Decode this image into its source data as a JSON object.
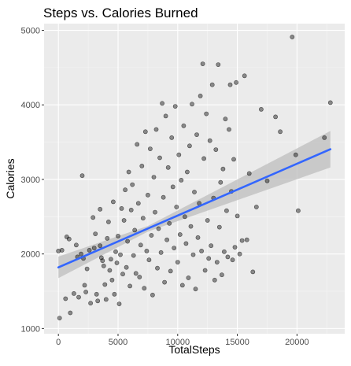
{
  "chart_data": {
    "type": "scatter",
    "title": "Steps vs. Calories Burned",
    "xlabel": "TotalSteps",
    "ylabel": "Calories",
    "xlim": [
      -1200,
      24000
    ],
    "ylim": [
      930,
      5090
    ],
    "x_ticks": [
      0,
      5000,
      10000,
      15000,
      20000
    ],
    "x_tick_labels": [
      "0",
      "5000",
      "10000",
      "15000",
      "20000"
    ],
    "y_ticks": [
      1000,
      2000,
      3000,
      4000,
      5000
    ],
    "y_tick_labels": [
      "1000",
      "2000",
      "3000",
      "4000",
      "5000"
    ],
    "grid": true,
    "colors": {
      "panel": "#ebebeb",
      "grid_major": "#ffffff",
      "grid_minor": "#f5f5f5",
      "points": "#000000",
      "fit_line": "#3366ff",
      "confidence_band": "#bdbdbd"
    },
    "trend": {
      "method": "linear",
      "x": [
        0,
        22800
      ],
      "y": [
        1820,
        3405
      ],
      "ci_upper": [
        1965,
        3650
      ],
      "ci_lower": [
        1675,
        3160
      ],
      "ci_mid_x": 7500,
      "ci_mid_upper": 2375,
      "ci_mid_lower": 2300
    },
    "points": [
      [
        0,
        2040
      ],
      [
        100,
        1140
      ],
      [
        300,
        2050
      ],
      [
        600,
        1400
      ],
      [
        700,
        2230
      ],
      [
        900,
        2200
      ],
      [
        1000,
        1210
      ],
      [
        1300,
        1470
      ],
      [
        1500,
        2120
      ],
      [
        1600,
        1960
      ],
      [
        1700,
        1420
      ],
      [
        1900,
        2000
      ],
      [
        2000,
        3050
      ],
      [
        2100,
        1940
      ],
      [
        2200,
        1580
      ],
      [
        2300,
        1490
      ],
      [
        2400,
        1800
      ],
      [
        2600,
        2050
      ],
      [
        2700,
        1340
      ],
      [
        2900,
        2490
      ],
      [
        3000,
        2080
      ],
      [
        3100,
        2270
      ],
      [
        3200,
        1460
      ],
      [
        3300,
        1370
      ],
      [
        3500,
        2600
      ],
      [
        3500,
        2110
      ],
      [
        3600,
        1950
      ],
      [
        3700,
        1910
      ],
      [
        3800,
        1840
      ],
      [
        3900,
        1590
      ],
      [
        4000,
        1390
      ],
      [
        4100,
        2210
      ],
      [
        4200,
        2430
      ],
      [
        4300,
        1780
      ],
      [
        4400,
        1930
      ],
      [
        4500,
        1650
      ],
      [
        4600,
        2700
      ],
      [
        4700,
        1460
      ],
      [
        4800,
        2030
      ],
      [
        4900,
        1880
      ],
      [
        5000,
        2240
      ],
      [
        5100,
        1330
      ],
      [
        5200,
        1990
      ],
      [
        5300,
        2610
      ],
      [
        5400,
        1730
      ],
      [
        5500,
        2450
      ],
      [
        5600,
        2860
      ],
      [
        5700,
        1820
      ],
      [
        5800,
        2170
      ],
      [
        5900,
        3100
      ],
      [
        6000,
        1570
      ],
      [
        6100,
        2590
      ],
      [
        6200,
        2930
      ],
      [
        6300,
        1980
      ],
      [
        6400,
        2320
      ],
      [
        6500,
        1740
      ],
      [
        6600,
        3470
      ],
      [
        6700,
        2680
      ],
      [
        6800,
        1690
      ],
      [
        6900,
        2120
      ],
      [
        7000,
        3180
      ],
      [
        7100,
        2480
      ],
      [
        7200,
        1540
      ],
      [
        7300,
        3640
      ],
      [
        7400,
        2040
      ],
      [
        7500,
        2790
      ],
      [
        7600,
        1920
      ],
      [
        7700,
        3410
      ],
      [
        7800,
        2250
      ],
      [
        7900,
        1450
      ],
      [
        8000,
        3030
      ],
      [
        8100,
        2560
      ],
      [
        8200,
        3670
      ],
      [
        8300,
        1810
      ],
      [
        8400,
        2340
      ],
      [
        8500,
        3290
      ],
      [
        8600,
        2020
      ],
      [
        8700,
        4020
      ],
      [
        8800,
        2760
      ],
      [
        8900,
        1620
      ],
      [
        9000,
        3850
      ],
      [
        9100,
        2190
      ],
      [
        9200,
        3160
      ],
      [
        9300,
        2410
      ],
      [
        9400,
        1770
      ],
      [
        9500,
        3560
      ],
      [
        9600,
        2900
      ],
      [
        9700,
        2080
      ],
      [
        9800,
        3980
      ],
      [
        9900,
        2630
      ],
      [
        10000,
        1890
      ],
      [
        10100,
        3330
      ],
      [
        10200,
        2260
      ],
      [
        10300,
        2990
      ],
      [
        10400,
        1580
      ],
      [
        10500,
        3720
      ],
      [
        10600,
        2500
      ],
      [
        10700,
        2140
      ],
      [
        10800,
        3100
      ],
      [
        10900,
        1680
      ],
      [
        11000,
        3450
      ],
      [
        11100,
        2370
      ],
      [
        11200,
        4010
      ],
      [
        11300,
        1990
      ],
      [
        11400,
        2830
      ],
      [
        11500,
        1530
      ],
      [
        11600,
        3600
      ],
      [
        11700,
        2220
      ],
      [
        11800,
        2680
      ],
      [
        11900,
        4120
      ],
      [
        12000,
        2040
      ],
      [
        12100,
        4550
      ],
      [
        12200,
        3280
      ],
      [
        12300,
        1780
      ],
      [
        12400,
        3880
      ],
      [
        12500,
        2450
      ],
      [
        12600,
        1940
      ],
      [
        12700,
        3520
      ],
      [
        12800,
        2110
      ],
      [
        12900,
        4270
      ],
      [
        13000,
        2750
      ],
      [
        13100,
        1650
      ],
      [
        13200,
        3400
      ],
      [
        13300,
        1890
      ],
      [
        13400,
        4540
      ],
      [
        13500,
        2360
      ],
      [
        13600,
        2960
      ],
      [
        13700,
        1720
      ],
      [
        13800,
        3140
      ],
      [
        13900,
        2030
      ],
      [
        14000,
        3810
      ],
      [
        14100,
        2580
      ],
      [
        14200,
        1960
      ],
      [
        14300,
        3670
      ],
      [
        14400,
        4270
      ],
      [
        14500,
        2840
      ],
      [
        14600,
        1920
      ],
      [
        14700,
        3270
      ],
      [
        14800,
        2090
      ],
      [
        14900,
        4300
      ],
      [
        15000,
        2510
      ],
      [
        15200,
        2000
      ],
      [
        15400,
        2180
      ],
      [
        15600,
        4390
      ],
      [
        15800,
        2190
      ],
      [
        16000,
        3080
      ],
      [
        16300,
        1760
      ],
      [
        16600,
        2630
      ],
      [
        17000,
        3940
      ],
      [
        17500,
        2980
      ],
      [
        18200,
        3840
      ],
      [
        18600,
        3640
      ],
      [
        19600,
        4910
      ],
      [
        19900,
        3330
      ],
      [
        20100,
        2580
      ],
      [
        22300,
        3560
      ],
      [
        22800,
        4030
      ]
    ]
  }
}
